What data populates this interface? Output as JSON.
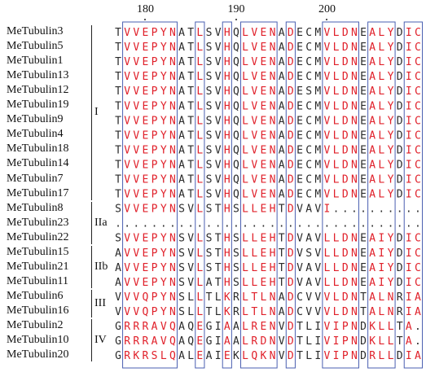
{
  "alignment": {
    "positions": [
      {
        "label": "180",
        "col": 3
      },
      {
        "label": "190",
        "col": 13
      },
      {
        "label": "200",
        "col": 23
      }
    ],
    "sequences": [
      {
        "name": "MeTubulin3",
        "seq": "TVVEPYNATLSVHQLVENADECMVLDNEALYDIC"
      },
      {
        "name": "MeTubulin5",
        "seq": "TVVEPYNATLSVHQLVENADECMVLDNEALYDIC"
      },
      {
        "name": "MeTubulin1",
        "seq": "TVVEPYNATLSVHQLVENADECMVLDNEALYDIC"
      },
      {
        "name": "MeTubulin13",
        "seq": "TVVEPYNATLSVHQLVENADECMVLDNEALYDIC"
      },
      {
        "name": "MeTubulin12",
        "seq": "TVVEPYNATLSVHQLVENADESMVLDNEALYDIC"
      },
      {
        "name": "MeTubulin19",
        "seq": "TVVEPYNATLSVHQLVENADECMVLDNEALYDIC"
      },
      {
        "name": "MeTubulin9",
        "seq": "TVVEPYNATLSVHQLVENADECMVLDNEALYDIC"
      },
      {
        "name": "MeTubulin4",
        "seq": "TVVEPYNATLSVHQLVENADECMVLDNEALYDIC"
      },
      {
        "name": "MeTubulin18",
        "seq": "TVVEPYNATLSVHQLVENADECMVLDNEALYDIC"
      },
      {
        "name": "MeTubulin14",
        "seq": "TVVEPYNATLSVHQLVENADECMVLDNEALYDIC"
      },
      {
        "name": "MeTubulin7",
        "seq": "TVVEPYNATLSVHQLVENADECMVLDNEALYDIC"
      },
      {
        "name": "MeTubulin17",
        "seq": "TVVEPYNATLSVHQLVENADECMVLDNEALYDIC"
      },
      {
        "name": "MeTubulin8",
        "seq": "SVVEPYNSVLSTHSLLEHTDVAVI.........."
      },
      {
        "name": "MeTubulin23",
        "seq": ".................................."
      },
      {
        "name": "MeTubulin22",
        "seq": "SVVEPYNSVLSTHSLLEHTDVAVLLDNEAIYDIC"
      },
      {
        "name": "MeTubulin15",
        "seq": "AVVEPYNSVLSTHSLLEHTDVSVLLDNEAIYDIC"
      },
      {
        "name": "MeTubulin21",
        "seq": "AVVEPYNSVLSTHSLLEHTDVAVLLDNEAIYDIC"
      },
      {
        "name": "MeTubulin11",
        "seq": "AVVEPYNSVLATHSLLEHTDVAVLLDNEAIYDIC"
      },
      {
        "name": "MeTubulin6",
        "seq": "VVVQPYNSLLTLKRLTLNADCVVVLDNTALNRIA"
      },
      {
        "name": "MeTubulin16",
        "seq": "VVVQPYNSLLTLKRLTLNADCVVVLDNTALNRIA"
      },
      {
        "name": "MeTubulin2",
        "seq": "GRRRAVQAQEGIAALRENVDTLIVIPNDKLLTA."
      },
      {
        "name": "MeTubulin10",
        "seq": "GRRRAVQAQEGIAALRDNVDTLIVIPNDKLLTA."
      },
      {
        "name": "MeTubulin20",
        "seq": "GRKRSLQALEAIEKLQKNVDTLIVIPNDRLLDIA"
      }
    ],
    "groups": [
      {
        "label": "I",
        "from": 0,
        "to": 11
      },
      {
        "label": "IIa",
        "from": 12,
        "to": 14
      },
      {
        "label": "IIb",
        "from": 15,
        "to": 17
      },
      {
        "label": "III",
        "from": 18,
        "to": 19
      },
      {
        "label": "IV",
        "from": 20,
        "to": 22
      }
    ],
    "conserved_boxes": [
      {
        "from": 1,
        "to": 6
      },
      {
        "from": 9,
        "to": 9
      },
      {
        "from": 12,
        "to": 12
      },
      {
        "from": 14,
        "to": 17
      },
      {
        "from": 19,
        "to": 19
      },
      {
        "from": 23,
        "to": 26
      },
      {
        "from": 28,
        "to": 30
      },
      {
        "from": 32,
        "to": 33
      }
    ],
    "colors": {
      "highlight": "#e0202a",
      "text": "#2a2a2a",
      "box": "#4a5fb0"
    }
  }
}
